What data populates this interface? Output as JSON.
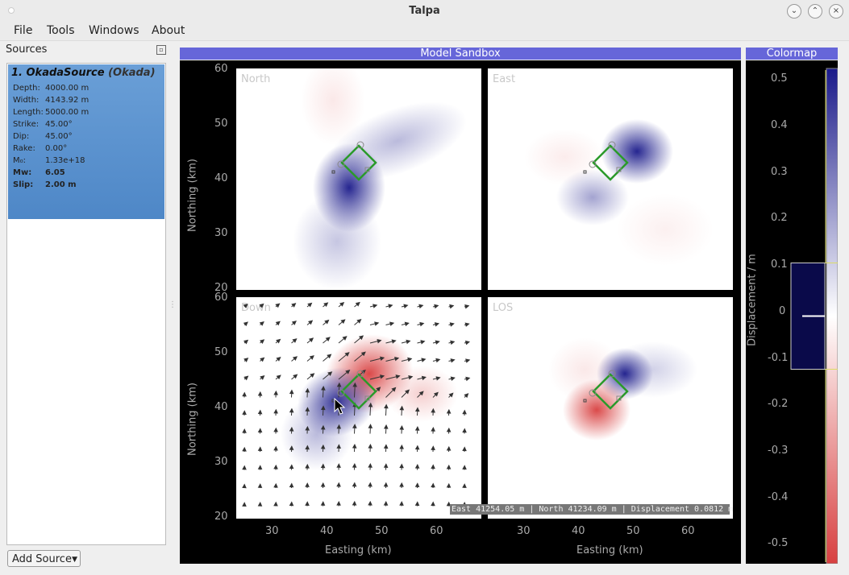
{
  "window": {
    "title": "Talpa"
  },
  "menu": [
    "File",
    "Tools",
    "Windows",
    "About"
  ],
  "sources": {
    "title": "Sources",
    "items": [
      {
        "name": "1. OkadaSource",
        "type": "(Okada)",
        "params": [
          {
            "label": "Depth:",
            "value": "4000.00 m",
            "bold": false
          },
          {
            "label": "Width:",
            "value": "4143.92 m",
            "bold": false
          },
          {
            "label": "Length:",
            "value": "5000.00 m",
            "bold": false
          },
          {
            "label": "Strike:",
            "value": "45.00°",
            "bold": false
          },
          {
            "label": "Dip:",
            "value": "45.00°",
            "bold": false
          },
          {
            "label": "Rake:",
            "value": "0.00°",
            "bold": false
          },
          {
            "label": "M₀:",
            "value": "1.33e+18",
            "bold": false
          },
          {
            "label": "Mw:",
            "value": "6.05",
            "bold": true
          },
          {
            "label": "Slip:",
            "value": "2.00 m",
            "bold": true
          }
        ]
      }
    ],
    "add_button": "Add Source"
  },
  "sandbox": {
    "title": "Model Sandbox",
    "plots": [
      {
        "label": "North"
      },
      {
        "label": "East"
      },
      {
        "label": "Down"
      },
      {
        "label": "LOS"
      }
    ],
    "y_ticks": [
      "60",
      "50",
      "40",
      "30",
      "20"
    ],
    "x_ticks": [
      "30",
      "40",
      "50",
      "60"
    ],
    "ylabel": "Northing (km)",
    "xlabel": "Easting (km)",
    "status": "East 41254.05 m | North 41234.09 m | Displacement 0.0812 m"
  },
  "colormap": {
    "title": "Colormap",
    "ticks": [
      "0.5",
      "0.4",
      "0.3",
      "0.2",
      "0.1",
      "0",
      "-0.1",
      "-0.2",
      "-0.3",
      "-0.4",
      "-0.5"
    ],
    "ylabel": "Displacement / m",
    "colors": {
      "positive": "#1a1a8a",
      "zero": "#ffffff",
      "negative": "#d84040"
    }
  }
}
